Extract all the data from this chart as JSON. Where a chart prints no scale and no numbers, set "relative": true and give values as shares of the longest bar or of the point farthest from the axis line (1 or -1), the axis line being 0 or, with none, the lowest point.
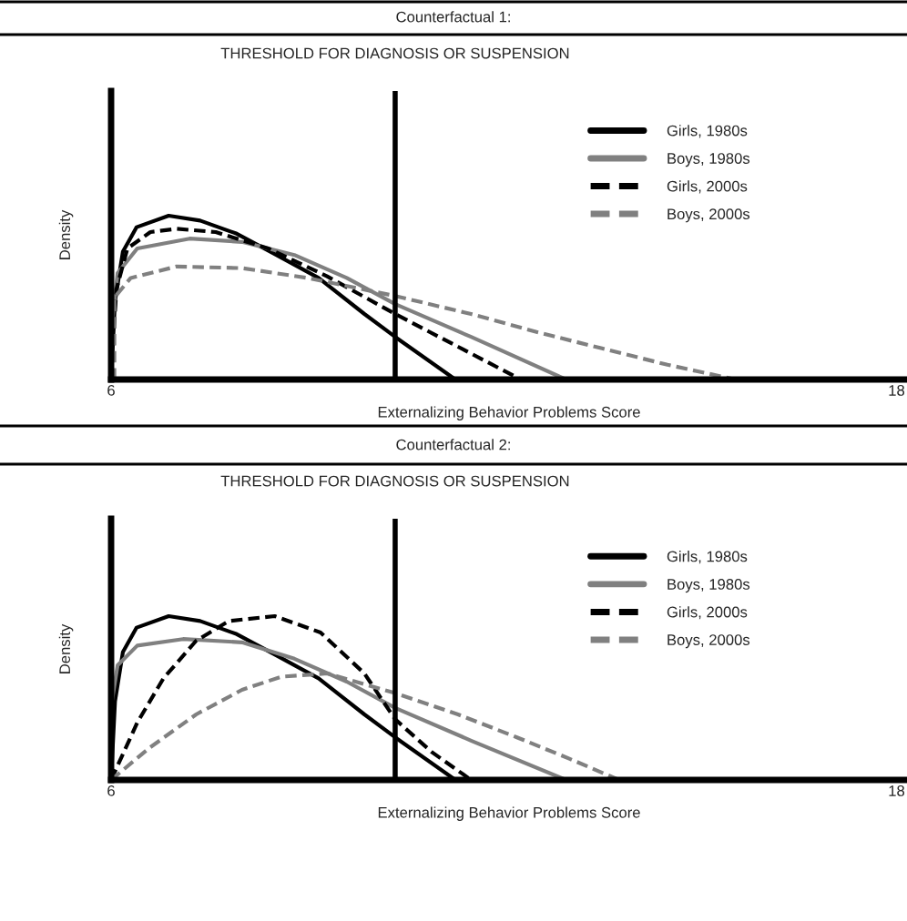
{
  "chart_data": [
    {
      "type": "line",
      "title": "Counterfactual 1:",
      "xlabel": "Externalizing Behavior Problems Score",
      "ylabel": "Density",
      "relative": true,
      "xlim": [
        6,
        18.16
      ],
      "xticks": [
        6,
        18
      ],
      "legend": "upper right",
      "grid": false,
      "ref_lines": [
        {
          "axis": "x",
          "value": 10.34,
          "label": "THRESHOLD FOR DIAGNOSIS OR SUSPENSION",
          "color": "#000000"
        }
      ],
      "series": [
        {
          "name": "Girls, 1980s",
          "color": "#000000",
          "line_style": "solid",
          "x": [
            6.0,
            6.06,
            6.18,
            6.39,
            6.88,
            7.36,
            7.92,
            8.48,
            9.17,
            9.87,
            10.34,
            11.26
          ],
          "values": [
            0,
            0.48,
            0.78,
            0.93,
            1.0,
            0.97,
            0.89,
            0.77,
            0.62,
            0.4,
            0.26,
            0
          ]
        },
        {
          "name": "Boys, 1980s",
          "color": "#808080",
          "line_style": "solid",
          "x": [
            6.0,
            6.1,
            6.4,
            7.2,
            8.0,
            8.8,
            9.6,
            10.34,
            11.5,
            12.95
          ],
          "values": [
            0.3,
            0.65,
            0.8,
            0.86,
            0.84,
            0.76,
            0.62,
            0.46,
            0.26,
            0
          ]
        },
        {
          "name": "Girls, 2000s",
          "color": "#000000",
          "line_style": "dashed",
          "x": [
            6.0,
            6.08,
            6.25,
            6.6,
            7.0,
            7.6,
            8.4,
            9.3,
            10.34,
            11.3,
            12.26
          ],
          "values": [
            0,
            0.55,
            0.8,
            0.9,
            0.92,
            0.9,
            0.8,
            0.63,
            0.4,
            0.2,
            0
          ]
        },
        {
          "name": "Boys, 2000s",
          "color": "#808080",
          "line_style": "dashed",
          "x": [
            6.05,
            6.05,
            6.3,
            7.0,
            8.0,
            9.0,
            10.34,
            11.5,
            12.5,
            13.5,
            14.5,
            15.54
          ],
          "values": [
            0,
            0.5,
            0.62,
            0.69,
            0.68,
            0.62,
            0.51,
            0.4,
            0.29,
            0.19,
            0.09,
            0
          ]
        }
      ]
    },
    {
      "type": "line",
      "title": "Counterfactual 2:",
      "xlabel": "Externalizing Behavior Problems Score",
      "ylabel": "Density",
      "relative": true,
      "xlim": [
        6,
        18.16
      ],
      "xticks": [
        6,
        18
      ],
      "legend": "upper right",
      "grid": false,
      "ref_lines": [
        {
          "axis": "x",
          "value": 10.34,
          "label": "THRESHOLD FOR DIAGNOSIS OR SUSPENSION",
          "color": "#000000"
        }
      ],
      "series": [
        {
          "name": "Girls, 1980s",
          "color": "#000000",
          "line_style": "solid",
          "x": [
            6.0,
            6.06,
            6.18,
            6.39,
            6.88,
            7.36,
            7.92,
            8.48,
            9.17,
            9.87,
            10.34,
            11.26
          ],
          "values": [
            0,
            0.48,
            0.78,
            0.93,
            1.0,
            0.97,
            0.89,
            0.77,
            0.62,
            0.4,
            0.26,
            0
          ]
        },
        {
          "name": "Boys, 1980s",
          "color": "#808080",
          "line_style": "solid",
          "x": [
            6.0,
            6.1,
            6.4,
            7.1,
            8.0,
            8.8,
            9.6,
            10.34,
            11.5,
            12.95
          ],
          "values": [
            0.45,
            0.7,
            0.82,
            0.86,
            0.84,
            0.74,
            0.6,
            0.44,
            0.24,
            0
          ]
        },
        {
          "name": "Girls, 2000s",
          "color": "#000000",
          "line_style": "dashed",
          "x": [
            6.0,
            6.4,
            6.8,
            7.3,
            7.8,
            8.5,
            9.2,
            9.87,
            10.34,
            10.9,
            11.5
          ],
          "values": [
            0,
            0.35,
            0.62,
            0.85,
            0.97,
            1.0,
            0.9,
            0.65,
            0.37,
            0.17,
            0
          ]
        },
        {
          "name": "Boys, 2000s",
          "color": "#808080",
          "line_style": "dashed",
          "x": [
            6.0,
            6.6,
            7.3,
            8.0,
            8.6,
            9.3,
            10.34,
            11.3,
            12.2,
            13.0,
            13.76
          ],
          "values": [
            0,
            0.2,
            0.4,
            0.55,
            0.63,
            0.65,
            0.53,
            0.4,
            0.26,
            0.13,
            0
          ]
        }
      ]
    }
  ]
}
